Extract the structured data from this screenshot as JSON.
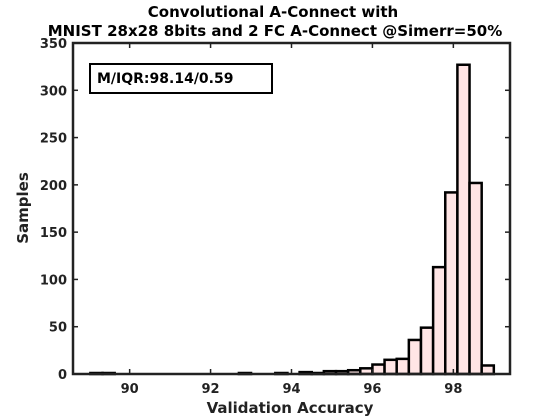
{
  "chart_data": {
    "type": "bar",
    "title_lines": [
      "Convolutional A-Connect with",
      "MNIST 28x28 8bits and 2 FC A-Connect @Simerr=50%"
    ],
    "xlabel": "Validation Accuracy",
    "ylabel": "Samples",
    "xlim": [
      88.6,
      99.4
    ],
    "ylim": [
      0,
      350
    ],
    "xticks": [
      90,
      92,
      94,
      96,
      98
    ],
    "yticks": [
      0,
      50,
      100,
      150,
      200,
      250,
      300,
      350
    ],
    "annotation": "M/IQR:98.14/0.59",
    "bin_width": 0.3,
    "bar_color": "#ffe5e5",
    "edge_color": "#000000",
    "bins": [
      {
        "x": 89.18,
        "count": 1
      },
      {
        "x": 89.48,
        "count": 0
      },
      {
        "x": 92.85,
        "count": 1
      },
      {
        "x": 93.75,
        "count": 1
      },
      {
        "x": 94.35,
        "count": 2
      },
      {
        "x": 94.65,
        "count": 0
      },
      {
        "x": 94.95,
        "count": 3
      },
      {
        "x": 95.25,
        "count": 3
      },
      {
        "x": 95.55,
        "count": 4
      },
      {
        "x": 95.85,
        "count": 6
      },
      {
        "x": 96.15,
        "count": 10
      },
      {
        "x": 96.45,
        "count": 15
      },
      {
        "x": 96.75,
        "count": 16
      },
      {
        "x": 97.05,
        "count": 36
      },
      {
        "x": 97.35,
        "count": 49
      },
      {
        "x": 97.65,
        "count": 113
      },
      {
        "x": 97.95,
        "count": 192
      },
      {
        "x": 98.25,
        "count": 327
      },
      {
        "x": 98.55,
        "count": 202
      },
      {
        "x": 98.85,
        "count": 9
      }
    ]
  }
}
